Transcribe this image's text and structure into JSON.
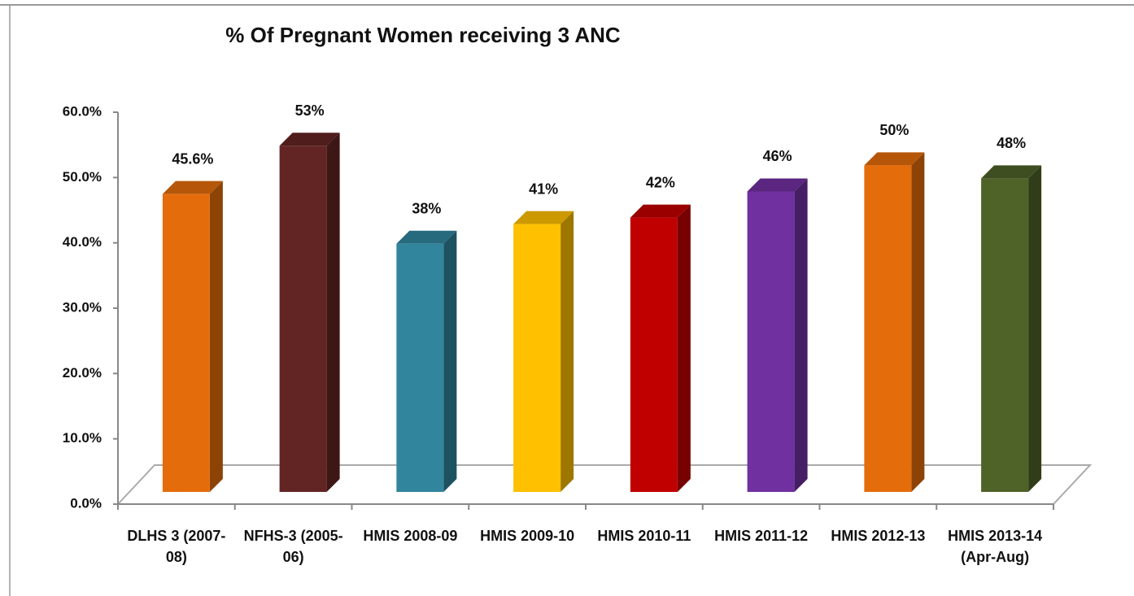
{
  "chart_data": {
    "type": "bar3d",
    "title": "% Of Pregnant Women receiving 3 ANC",
    "categories": [
      "DLHS 3 (2007-08)",
      "NFHS-3 (2005-06)",
      "HMIS 2008-09",
      "HMIS 2009-10",
      "HMIS 2010-11",
      "HMIS 2011-12",
      "HMIS 2012-13",
      "HMIS 2013-14 (Apr-Aug)"
    ],
    "values": [
      45.6,
      53,
      38,
      41,
      42,
      46,
      50,
      48
    ],
    "value_labels": [
      "45.6%",
      "53%",
      "38%",
      "41%",
      "42%",
      "46%",
      "50%",
      "48%"
    ],
    "colors": [
      "#e46c0a",
      "#632523",
      "#31859c",
      "#ffc000",
      "#c00000",
      "#7030a0",
      "#e46c0a",
      "#4f6228"
    ],
    "ylim": [
      0,
      60
    ],
    "yticks": [
      {
        "value": 0,
        "label": "0.0%"
      },
      {
        "value": 10,
        "label": "10.0%"
      },
      {
        "value": 20,
        "label": "20.0%"
      },
      {
        "value": 30,
        "label": "30.0%"
      },
      {
        "value": 40,
        "label": "40.0%"
      },
      {
        "value": 50,
        "label": "50.0%"
      },
      {
        "value": 60,
        "label": "60.0%"
      }
    ]
  }
}
